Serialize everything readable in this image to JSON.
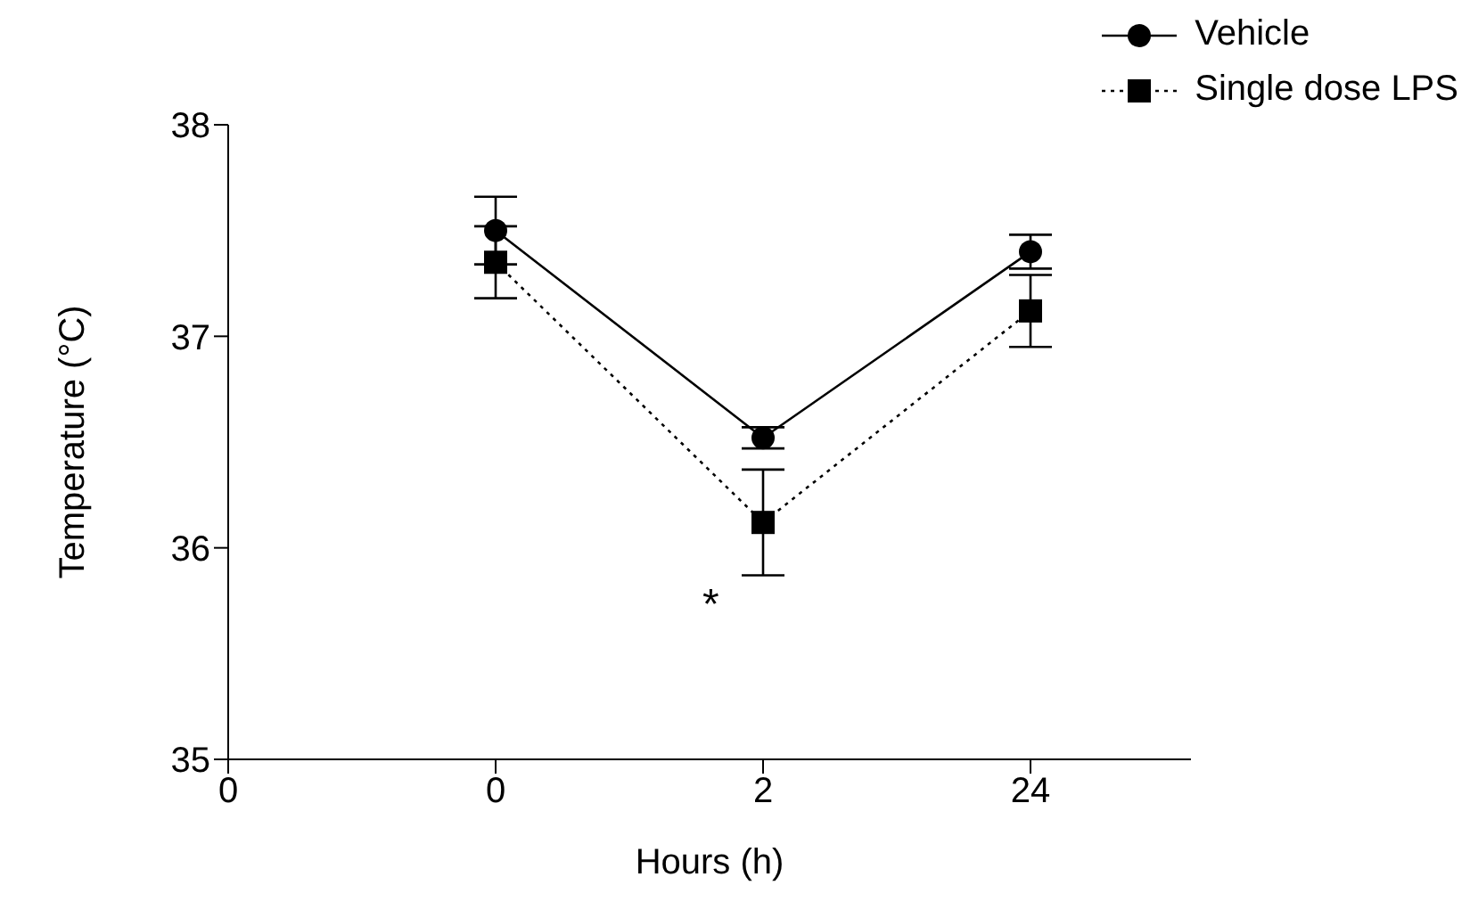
{
  "chart_data": {
    "type": "line",
    "xlabel": "Hours (h)",
    "ylabel": "Temperature (°C)",
    "categories": [
      "0",
      "0",
      "2",
      "24"
    ],
    "series": [
      {
        "name": "Vehicle",
        "color": "#000000",
        "marker": "circle",
        "line_style": "solid",
        "values": [
          null,
          37.5,
          36.52,
          37.4
        ],
        "errors": [
          null,
          0.16,
          0.05,
          0.08
        ]
      },
      {
        "name": "Single dose LPS",
        "color": "#000000",
        "marker": "square",
        "line_style": "dotted",
        "values": [
          null,
          37.35,
          36.12,
          37.12
        ],
        "errors": [
          null,
          0.17,
          0.25,
          0.17
        ]
      }
    ],
    "ylim": [
      35,
      38
    ],
    "yticks": [
      35,
      36,
      37,
      38
    ],
    "legend": "top right",
    "annotations": [
      "*"
    ]
  }
}
